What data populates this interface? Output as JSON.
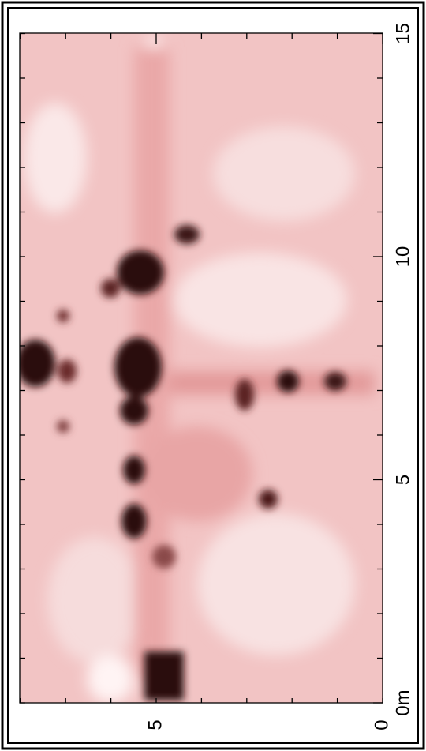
{
  "axes": {
    "along_ticks": [
      "0m",
      "5",
      "10",
      "15"
    ],
    "across_ticks": [
      "0",
      "5"
    ]
  }
}
